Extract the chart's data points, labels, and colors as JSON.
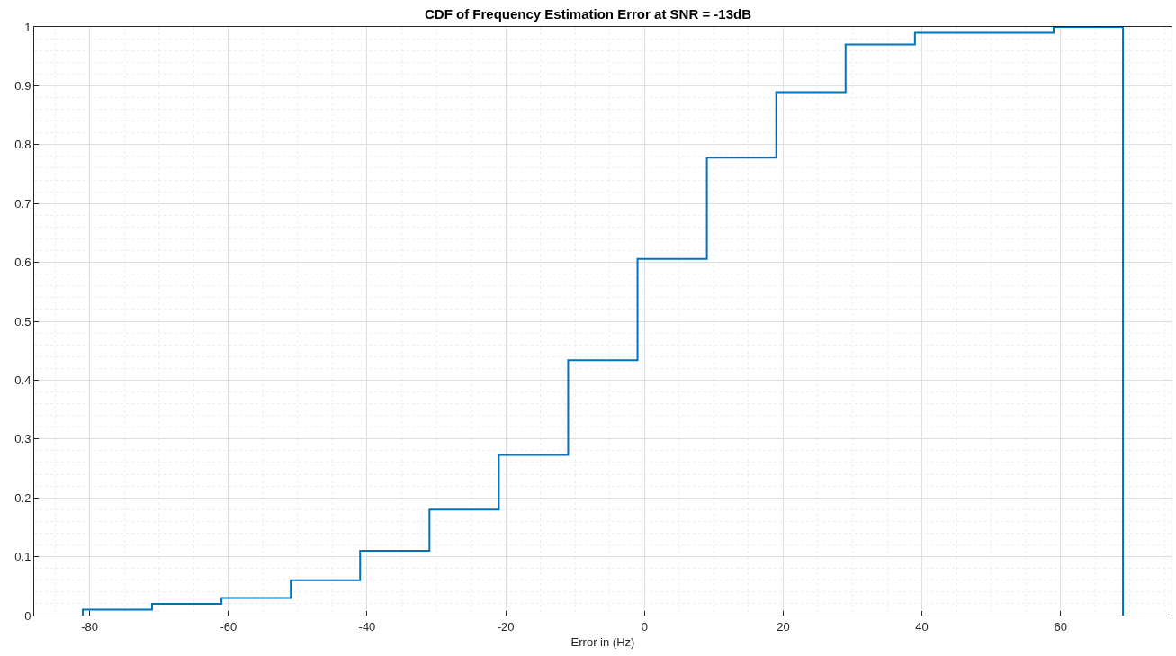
{
  "chart_data": {
    "type": "step",
    "title": "CDF of Frequency Estimation Error at SNR = -13dB",
    "xlabel": "Error in (Hz)",
    "series": [
      {
        "color": "#0072bd",
        "x": [
          -81,
          -81,
          -71,
          -61,
          -51,
          -41,
          -31,
          -21,
          -11,
          -1,
          9,
          19,
          29,
          39,
          59,
          69
        ],
        "values": [
          0,
          0.01,
          0.02,
          0.03,
          0.06,
          0.11,
          0.18,
          0.273,
          0.434,
          0.606,
          0.778,
          0.889,
          0.97,
          0.99,
          1.0,
          0
        ]
      }
    ],
    "xlim": [
      -88,
      76
    ],
    "xticks": [
      -80,
      -60,
      -40,
      -20,
      0,
      20,
      40,
      60
    ],
    "ylim": [
      0,
      1
    ],
    "yticks": [
      0,
      0.1,
      0.2,
      0.3,
      0.4,
      0.5,
      0.6,
      0.7,
      0.8,
      0.9,
      1
    ],
    "grid": true,
    "line_style": "solid",
    "marker": "none"
  }
}
